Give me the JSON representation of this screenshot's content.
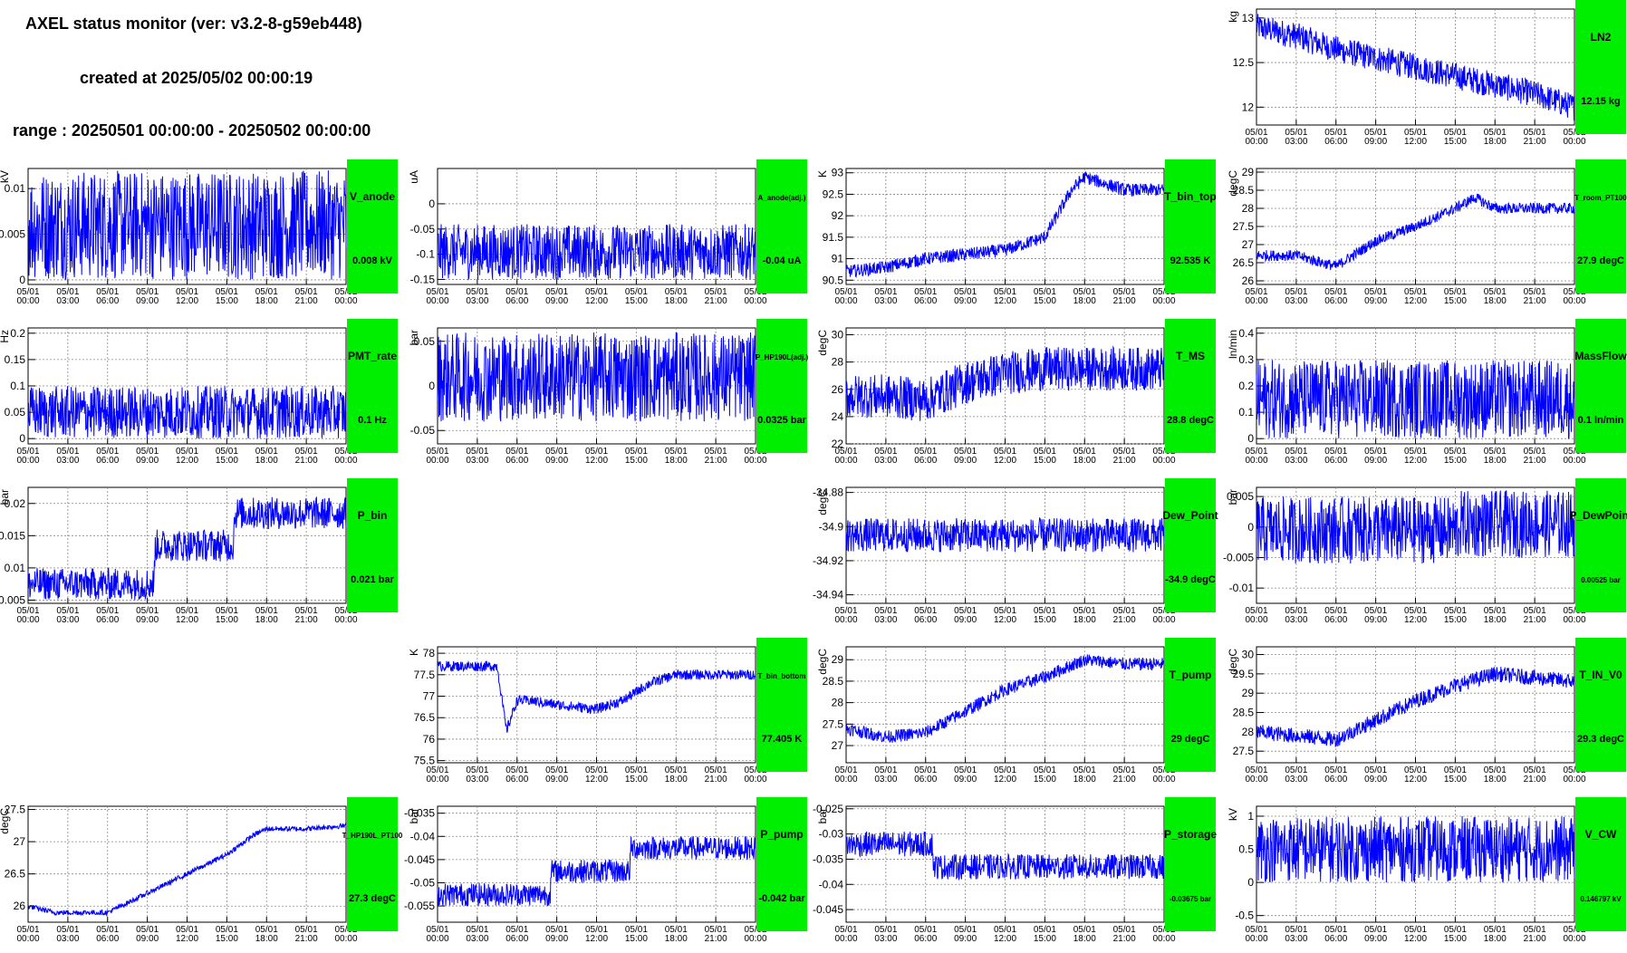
{
  "header": {
    "title": "AXEL status monitor (ver: v3.2-8-g59eb448)",
    "created": "created at 2025/05/02 00:00:19",
    "range": "range : 20250501 00:00:00 - 20250502 00:00:00"
  },
  "colors": {
    "series": "#0000ff",
    "label_box": "#00ee00",
    "grid": "#888888"
  },
  "x_ticks": [
    [
      "05/01",
      "00:00"
    ],
    [
      "05/01",
      "03:00"
    ],
    [
      "05/01",
      "06:00"
    ],
    [
      "05/01",
      "09:00"
    ],
    [
      "05/01",
      "12:00"
    ],
    [
      "05/01",
      "15:00"
    ],
    [
      "05/01",
      "18:00"
    ],
    [
      "05/01",
      "21:00"
    ],
    [
      "05/02",
      "00:00"
    ]
  ],
  "chart_data": [
    {
      "id": "LN2",
      "type": "line",
      "row": 0,
      "col": 3,
      "ylabel": "kg",
      "name": "LN2",
      "value": "12.15 kg",
      "ylim": [
        11.8,
        13.1
      ],
      "yticks": [
        "12",
        "12.5",
        "13"
      ],
      "ytickv": [
        12,
        12.5,
        13
      ],
      "x": [
        0,
        3,
        6,
        9,
        12,
        15,
        18,
        21,
        24
      ],
      "y": [
        12.9,
        12.8,
        12.65,
        12.55,
        12.45,
        12.35,
        12.25,
        12.15,
        12.0
      ],
      "band": 0.15
    },
    {
      "id": "V_anode",
      "type": "line",
      "row": 1,
      "col": 0,
      "ylabel": "kV",
      "name": "V_anode",
      "value": "0.008 kV",
      "ylim": [
        -0.0005,
        0.0122
      ],
      "yticks": [
        "0",
        "0.005",
        "0.01"
      ],
      "ytickv": [
        0,
        0.005,
        0.01
      ],
      "x": [
        0,
        24
      ],
      "y": [
        0.006,
        0.006
      ],
      "band": 0.006
    },
    {
      "id": "A_anode",
      "type": "line",
      "row": 1,
      "col": 1,
      "ylabel": "uA",
      "name": "A_anode(adj.)",
      "value": "-0.04 uA",
      "ylim": [
        -0.16,
        0.07
      ],
      "yticks": [
        "-0.15",
        "-0.1",
        "-0.05",
        "0"
      ],
      "ytickv": [
        -0.15,
        -0.1,
        -0.05,
        0
      ],
      "x": [
        0,
        24
      ],
      "y": [
        -0.095,
        -0.095
      ],
      "band": 0.055
    },
    {
      "id": "T_bin_top",
      "type": "line",
      "row": 1,
      "col": 2,
      "ylabel": "K",
      "name": "T_bin_top",
      "value": "92.535 K",
      "ylim": [
        90.4,
        93.1
      ],
      "yticks": [
        "90.5",
        "91",
        "91.5",
        "92",
        "92.5",
        "93"
      ],
      "ytickv": [
        90.5,
        91,
        91.5,
        92,
        92.5,
        93
      ],
      "x": [
        0,
        3,
        6,
        9,
        12,
        15,
        17,
        18,
        21,
        24
      ],
      "y": [
        90.7,
        90.8,
        91.0,
        91.1,
        91.2,
        91.5,
        92.6,
        92.9,
        92.6,
        92.6
      ],
      "band": 0.15
    },
    {
      "id": "T_room",
      "type": "line",
      "row": 1,
      "col": 3,
      "ylabel": "degC",
      "name": "T_room_PT100",
      "value": "27.9 degC",
      "ylim": [
        25.9,
        29.1
      ],
      "yticks": [
        "26",
        "26.5",
        "27",
        "27.5",
        "28",
        "28.5",
        "29"
      ],
      "ytickv": [
        26,
        26.5,
        27,
        27.5,
        28,
        28.5,
        29
      ],
      "x": [
        0,
        3,
        6,
        9,
        12,
        15,
        16.5,
        18,
        21,
        24
      ],
      "y": [
        26.7,
        26.7,
        26.4,
        27.1,
        27.5,
        28.0,
        28.3,
        28.0,
        28.0,
        28.0
      ],
      "band": 0.15
    },
    {
      "id": "PMT_rate",
      "type": "line",
      "row": 2,
      "col": 0,
      "ylabel": "Hz",
      "name": "PMT_rate",
      "value": "0.1 Hz",
      "ylim": [
        -0.01,
        0.21
      ],
      "yticks": [
        "0",
        "0.05",
        "0.1",
        "0.15",
        "0.2"
      ],
      "ytickv": [
        0,
        0.05,
        0.1,
        0.15,
        0.2
      ],
      "x": [
        0,
        24
      ],
      "y": [
        0.05,
        0.05
      ],
      "band": 0.05
    },
    {
      "id": "P_HP190L",
      "type": "line",
      "row": 2,
      "col": 1,
      "ylabel": "bar",
      "name": "P_HP190L(adj.)",
      "value": "0.0325 bar",
      "ylim": [
        -0.065,
        0.065
      ],
      "yticks": [
        "-0.05",
        "0",
        "0.05"
      ],
      "ytickv": [
        -0.05,
        0,
        0.05
      ],
      "x": [
        0,
        24
      ],
      "y": [
        0.01,
        0.01
      ],
      "band": 0.05
    },
    {
      "id": "T_MS",
      "type": "line",
      "row": 2,
      "col": 2,
      "ylabel": "degC",
      "name": "T_MS",
      "value": "28.8 degC",
      "ylim": [
        22,
        30.5
      ],
      "yticks": [
        "22",
        "24",
        "26",
        "28",
        "30"
      ],
      "ytickv": [
        22,
        24,
        26,
        28,
        30
      ],
      "x": [
        0,
        3,
        6,
        9,
        12,
        15,
        18,
        21,
        24
      ],
      "y": [
        25.5,
        25.5,
        25.2,
        26.5,
        27.2,
        27.5,
        27.5,
        27.5,
        27.5
      ],
      "band": 1.6
    },
    {
      "id": "MassFlow",
      "type": "line",
      "row": 2,
      "col": 3,
      "ylabel": "ln/min",
      "name": "MassFlow",
      "value": "0.1 ln/min",
      "ylim": [
        -0.02,
        0.42
      ],
      "yticks": [
        "0",
        "0.1",
        "0.2",
        "0.3",
        "0.4"
      ],
      "ytickv": [
        0,
        0.1,
        0.2,
        0.3,
        0.4
      ],
      "x": [
        0,
        24
      ],
      "y": [
        0.15,
        0.15
      ],
      "band": 0.15
    },
    {
      "id": "P_bin",
      "type": "line",
      "row": 3,
      "col": 0,
      "ylabel": "bar",
      "name": "P_bin",
      "value": "0.021 bar",
      "ylim": [
        0.0045,
        0.0225
      ],
      "yticks": [
        "0.005",
        "0.01",
        "0.015",
        "0.02"
      ],
      "ytickv": [
        0.005,
        0.01,
        0.015,
        0.02
      ],
      "x": [
        0,
        9.5,
        9.6,
        15.5,
        15.6,
        24
      ],
      "y": [
        0.0075,
        0.0075,
        0.0135,
        0.0135,
        0.0185,
        0.0185
      ],
      "band": 0.0025
    },
    {
      "id": "Dew_Point",
      "type": "line",
      "row": 3,
      "col": 2,
      "ylabel": "degC",
      "name": "Dew_Point",
      "value": "-34.9 degC",
      "ylim": [
        -34.945,
        -34.877
      ],
      "yticks": [
        "-34.88",
        "-34.9",
        "-34.92",
        "-34.94"
      ],
      "ytickv": [
        -34.88,
        -34.9,
        -34.92,
        -34.94
      ],
      "x": [
        0,
        24
      ],
      "y": [
        -34.905,
        -34.905
      ],
      "band": 0.01
    },
    {
      "id": "P_DewPoint",
      "type": "line",
      "row": 3,
      "col": 3,
      "ylabel": "bar",
      "name": "P_DewPoint",
      "value": "0.00525 bar",
      "ylim": [
        -0.0125,
        0.0065
      ],
      "yticks": [
        "0.005",
        "0",
        "-0.005",
        "-0.01"
      ],
      "ytickv": [
        0.005,
        0,
        -0.005,
        -0.01
      ],
      "x": [
        0,
        15.2,
        15.3,
        24
      ],
      "y": [
        -0.0005,
        -0.0005,
        0.0005,
        0.0005
      ],
      "band": 0.0055
    },
    {
      "id": "T_bin_bottom",
      "type": "line",
      "row": 4,
      "col": 1,
      "ylabel": "K",
      "name": "T_bin_bottom",
      "value": "77.405 K",
      "ylim": [
        75.45,
        78.15
      ],
      "yticks": [
        "75.5",
        "76",
        "76.5",
        "77",
        "77.5",
        "78"
      ],
      "ytickv": [
        75.5,
        76,
        76.5,
        77,
        77.5,
        78
      ],
      "x": [
        0,
        4.5,
        5.2,
        6,
        7,
        9,
        12,
        14,
        16,
        18,
        21,
        24
      ],
      "y": [
        77.7,
        77.7,
        76.2,
        76.9,
        76.9,
        76.8,
        76.7,
        76.9,
        77.3,
        77.5,
        77.5,
        77.5
      ],
      "band": 0.12
    },
    {
      "id": "T_pump",
      "type": "line",
      "row": 4,
      "col": 2,
      "ylabel": "degC",
      "name": "T_pump",
      "value": "29 degC",
      "ylim": [
        26.6,
        29.3
      ],
      "yticks": [
        "27",
        "27.5",
        "28",
        "28.5",
        "29"
      ],
      "ytickv": [
        27,
        27.5,
        28,
        28.5,
        29
      ],
      "x": [
        0,
        3,
        6,
        9,
        12,
        15,
        18,
        21,
        24
      ],
      "y": [
        27.4,
        27.2,
        27.3,
        27.8,
        28.3,
        28.6,
        29.0,
        28.9,
        28.9
      ],
      "band": 0.15
    },
    {
      "id": "T_IN_V0",
      "type": "line",
      "row": 4,
      "col": 3,
      "ylabel": "degC",
      "name": "T_IN_V0",
      "value": "29.3 degC",
      "ylim": [
        27.2,
        30.2
      ],
      "yticks": [
        "27.5",
        "28",
        "28.5",
        "29",
        "29.5",
        "30"
      ],
      "ytickv": [
        27.5,
        28,
        28.5,
        29,
        29.5,
        30
      ],
      "x": [
        0,
        3,
        6,
        9,
        12,
        15,
        18,
        21,
        24
      ],
      "y": [
        28.0,
        27.9,
        27.8,
        28.3,
        28.8,
        29.2,
        29.5,
        29.4,
        29.3
      ],
      "band": 0.2
    },
    {
      "id": "T_HP190L",
      "type": "line",
      "row": 5,
      "col": 0,
      "ylabel": "degC",
      "name": "T_HP190L_PT100",
      "value": "27.3 degC",
      "ylim": [
        25.75,
        27.55
      ],
      "yticks": [
        "26",
        "26.5",
        "27",
        "27.5"
      ],
      "ytickv": [
        26,
        26.5,
        27,
        27.5
      ],
      "x": [
        0,
        2,
        6,
        9,
        12,
        15,
        17,
        18,
        21,
        24
      ],
      "y": [
        26.0,
        25.9,
        25.9,
        26.2,
        26.5,
        26.8,
        27.1,
        27.2,
        27.2,
        27.25
      ],
      "band": 0.04
    },
    {
      "id": "P_pump",
      "type": "line",
      "row": 5,
      "col": 1,
      "ylabel": "bar",
      "name": "P_pump",
      "value": "-0.042 bar",
      "ylim": [
        -0.0585,
        -0.0335
      ],
      "yticks": [
        "-0.035",
        "-0.04",
        "-0.045",
        "-0.05",
        "-0.055"
      ],
      "ytickv": [
        -0.035,
        -0.04,
        -0.045,
        -0.05,
        -0.055
      ],
      "x": [
        0,
        8.5,
        8.6,
        14.5,
        14.6,
        24
      ],
      "y": [
        -0.0525,
        -0.0525,
        -0.0475,
        -0.0475,
        -0.0425,
        -0.0425
      ],
      "band": 0.0025
    },
    {
      "id": "P_storage",
      "type": "line",
      "row": 5,
      "col": 2,
      "ylabel": "bar",
      "name": "P_storage",
      "value": "-0.03675 bar",
      "ylim": [
        -0.0475,
        -0.0245
      ],
      "yticks": [
        "-0.025",
        "-0.03",
        "-0.035",
        "-0.04",
        "-0.045"
      ],
      "ytickv": [
        -0.025,
        -0.03,
        -0.035,
        -0.04,
        -0.045
      ],
      "x": [
        0,
        6.5,
        6.6,
        24
      ],
      "y": [
        -0.032,
        -0.032,
        -0.0365,
        -0.0365
      ],
      "band": 0.0025
    },
    {
      "id": "V_CW",
      "type": "line",
      "row": 5,
      "col": 3,
      "ylabel": "kV",
      "name": "V_CW",
      "value": "0.146797 kV",
      "ylim": [
        -0.6,
        1.15
      ],
      "yticks": [
        "-0.5",
        "0",
        "0.5",
        "1"
      ],
      "ytickv": [
        -0.5,
        0,
        0.5,
        1
      ],
      "x": [
        0,
        24
      ],
      "y": [
        0.5,
        0.5
      ],
      "band": 0.5
    }
  ]
}
